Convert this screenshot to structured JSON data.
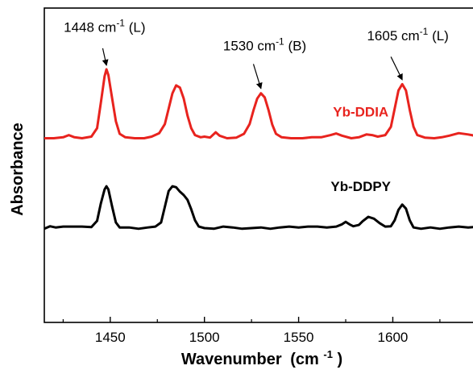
{
  "chart_data": {
    "type": "line",
    "xlabel": "Wavenumber",
    "xlabel_unit": "(cm",
    "xlabel_unit_exp": "-1",
    "xlabel_unit_close": ")",
    "ylabel": "Absorbance",
    "xlim": [
      1415,
      1646
    ],
    "ylim": [
      0,
      1
    ],
    "x_ticks": [
      1450,
      1500,
      1550,
      1600
    ],
    "y_ticks_shown": false,
    "grid": false,
    "series": [
      {
        "name": "Yb-DDIA",
        "color": "#e8231e",
        "points": [
          [
            1415,
            0.586
          ],
          [
            1420,
            0.586
          ],
          [
            1425,
            0.589
          ],
          [
            1428,
            0.596
          ],
          [
            1431,
            0.589
          ],
          [
            1435,
            0.586
          ],
          [
            1440,
            0.591
          ],
          [
            1443,
            0.618
          ],
          [
            1445,
            0.698
          ],
          [
            1447,
            0.783
          ],
          [
            1448,
            0.805
          ],
          [
            1449,
            0.787
          ],
          [
            1451,
            0.712
          ],
          [
            1453,
            0.64
          ],
          [
            1455,
            0.6
          ],
          [
            1458,
            0.589
          ],
          [
            1463,
            0.586
          ],
          [
            1468,
            0.586
          ],
          [
            1472,
            0.591
          ],
          [
            1476,
            0.602
          ],
          [
            1479,
            0.631
          ],
          [
            1481,
            0.68
          ],
          [
            1483,
            0.729
          ],
          [
            1485,
            0.754
          ],
          [
            1487,
            0.747
          ],
          [
            1489,
            0.712
          ],
          [
            1491,
            0.658
          ],
          [
            1493,
            0.618
          ],
          [
            1495,
            0.596
          ],
          [
            1498,
            0.589
          ],
          [
            1500,
            0.591
          ],
          [
            1503,
            0.588
          ],
          [
            1506,
            0.605
          ],
          [
            1508,
            0.594
          ],
          [
            1512,
            0.586
          ],
          [
            1517,
            0.588
          ],
          [
            1521,
            0.6
          ],
          [
            1524,
            0.631
          ],
          [
            1526,
            0.674
          ],
          [
            1528,
            0.712
          ],
          [
            1530,
            0.729
          ],
          [
            1532,
            0.716
          ],
          [
            1534,
            0.676
          ],
          [
            1536,
            0.629
          ],
          [
            1538,
            0.6
          ],
          [
            1541,
            0.589
          ],
          [
            1546,
            0.586
          ],
          [
            1552,
            0.586
          ],
          [
            1557,
            0.589
          ],
          [
            1562,
            0.589
          ],
          [
            1567,
            0.596
          ],
          [
            1570,
            0.601
          ],
          [
            1573,
            0.594
          ],
          [
            1578,
            0.586
          ],
          [
            1582,
            0.589
          ],
          [
            1586,
            0.598
          ],
          [
            1589,
            0.596
          ],
          [
            1592,
            0.591
          ],
          [
            1596,
            0.596
          ],
          [
            1599,
            0.622
          ],
          [
            1601,
            0.68
          ],
          [
            1603,
            0.738
          ],
          [
            1605,
            0.758
          ],
          [
            1607,
            0.738
          ],
          [
            1609,
            0.676
          ],
          [
            1611,
            0.622
          ],
          [
            1613,
            0.596
          ],
          [
            1617,
            0.588
          ],
          [
            1622,
            0.586
          ],
          [
            1626,
            0.589
          ],
          [
            1630,
            0.594
          ],
          [
            1635,
            0.602
          ],
          [
            1640,
            0.598
          ],
          [
            1646,
            0.591
          ]
        ]
      },
      {
        "name": "Yb-DDPY",
        "color": "#000000",
        "points": [
          [
            1415,
            0.298
          ],
          [
            1418,
            0.306
          ],
          [
            1421,
            0.302
          ],
          [
            1425,
            0.305
          ],
          [
            1430,
            0.305
          ],
          [
            1435,
            0.305
          ],
          [
            1440,
            0.303
          ],
          [
            1443,
            0.323
          ],
          [
            1445,
            0.378
          ],
          [
            1447,
            0.423
          ],
          [
            1448,
            0.433
          ],
          [
            1449,
            0.423
          ],
          [
            1451,
            0.368
          ],
          [
            1453,
            0.318
          ],
          [
            1455,
            0.302
          ],
          [
            1460,
            0.302
          ],
          [
            1465,
            0.298
          ],
          [
            1470,
            0.302
          ],
          [
            1474,
            0.305
          ],
          [
            1477,
            0.318
          ],
          [
            1479,
            0.368
          ],
          [
            1481,
            0.418
          ],
          [
            1483,
            0.433
          ],
          [
            1485,
            0.43
          ],
          [
            1487,
            0.416
          ],
          [
            1489,
            0.405
          ],
          [
            1491,
            0.39
          ],
          [
            1493,
            0.36
          ],
          [
            1495,
            0.325
          ],
          [
            1497,
            0.305
          ],
          [
            1500,
            0.3
          ],
          [
            1505,
            0.298
          ],
          [
            1510,
            0.305
          ],
          [
            1515,
            0.302
          ],
          [
            1520,
            0.298
          ],
          [
            1525,
            0.3
          ],
          [
            1530,
            0.302
          ],
          [
            1535,
            0.298
          ],
          [
            1540,
            0.302
          ],
          [
            1545,
            0.305
          ],
          [
            1550,
            0.302
          ],
          [
            1555,
            0.305
          ],
          [
            1560,
            0.305
          ],
          [
            1565,
            0.302
          ],
          [
            1570,
            0.305
          ],
          [
            1573,
            0.312
          ],
          [
            1575,
            0.32
          ],
          [
            1577,
            0.312
          ],
          [
            1579,
            0.306
          ],
          [
            1582,
            0.31
          ],
          [
            1584,
            0.322
          ],
          [
            1587,
            0.336
          ],
          [
            1590,
            0.33
          ],
          [
            1593,
            0.316
          ],
          [
            1596,
            0.305
          ],
          [
            1599,
            0.306
          ],
          [
            1601,
            0.325
          ],
          [
            1603,
            0.358
          ],
          [
            1605,
            0.375
          ],
          [
            1607,
            0.362
          ],
          [
            1609,
            0.325
          ],
          [
            1611,
            0.302
          ],
          [
            1615,
            0.298
          ],
          [
            1620,
            0.302
          ],
          [
            1625,
            0.298
          ],
          [
            1630,
            0.302
          ],
          [
            1635,
            0.305
          ],
          [
            1640,
            0.302
          ],
          [
            1646,
            0.305
          ]
        ]
      }
    ],
    "series_labels": [
      {
        "text": "Yb-DDIA",
        "color": "#e8231e",
        "x": 1583,
        "y": 0.655
      },
      {
        "text": "Yb-DDPY",
        "color": "#000000",
        "x": 1583,
        "y": 0.418
      }
    ],
    "annotations": [
      {
        "value": "1448",
        "unit": "cm",
        "exp": "-1",
        "suffix": "(L)",
        "label_x": 1447,
        "label_y": 0.925,
        "arrow_from": [
          1446,
          0.872
        ],
        "arrow_to": [
          1448,
          0.818
        ]
      },
      {
        "value": "1530",
        "unit": "cm",
        "exp": "-1",
        "suffix": "(B)",
        "label_x": 1532,
        "label_y": 0.865,
        "arrow_from": [
          1526,
          0.822
        ],
        "arrow_to": [
          1530,
          0.744
        ]
      },
      {
        "value": "1605",
        "unit": "cm",
        "exp": "-1",
        "suffix": "(L)",
        "label_x": 1608,
        "label_y": 0.898,
        "arrow_from": [
          1599,
          0.845
        ],
        "arrow_to": [
          1605,
          0.772
        ]
      }
    ]
  }
}
